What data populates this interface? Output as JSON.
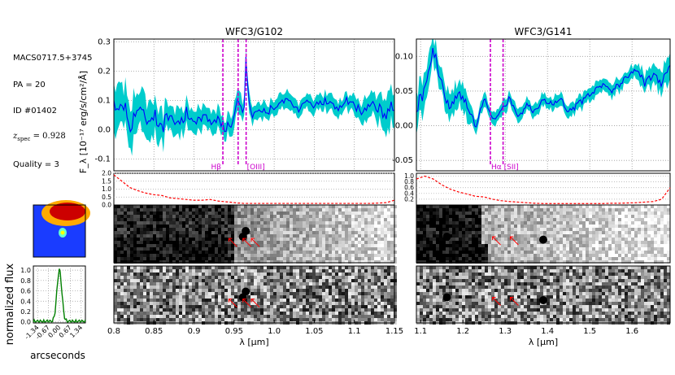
{
  "info": {
    "field": "MACS0717.5+3745",
    "pa": "PA = 20",
    "id": "ID #01402",
    "z_prefix": "z",
    "z_sub": "spec",
    "z_value": " = 0.928",
    "quality": "Quality = 3"
  },
  "colors": {
    "flux": "#0000ff",
    "error_band": "#00cccc",
    "line_marker": "#cc00cc",
    "contam": "#ff0000",
    "profile": "#008000"
  },
  "profile": {
    "ylabel": "normalized flux",
    "xlabel": "arcseconds",
    "yticks": [
      "0.0",
      "0.2",
      "0.4",
      "0.6",
      "0.8",
      "1.0"
    ],
    "xticks": [
      "-1.34",
      "-0.67",
      "0.00",
      "0.67",
      "1.34"
    ]
  },
  "chart_data": [
    {
      "type": "line",
      "title": "WFC3/G102",
      "ylabel": "F_λ [10⁻¹⁷ erg/s/cm²/Å]",
      "xlabel": "λ [μm]",
      "xlim": [
        0.8,
        1.15
      ],
      "ylim": [
        -0.14,
        0.31
      ],
      "xticks": [
        "0.8",
        "0.85",
        "0.9",
        "0.95",
        "1.0",
        "1.05",
        "1.1",
        "1.15"
      ],
      "yticks": [
        "-0.1",
        "0.0",
        "0.1",
        "0.2",
        "0.3"
      ],
      "grid": true,
      "lines": [
        {
          "label": "Hβ",
          "x": 0.936
        },
        {
          "label": "",
          "x": 0.955
        },
        {
          "label": "[OIII]",
          "x": 0.965
        }
      ],
      "series": [
        {
          "x": [
            0.8,
            0.81,
            0.82,
            0.83,
            0.84,
            0.85,
            0.86,
            0.87,
            0.88,
            0.89,
            0.9,
            0.91,
            0.92,
            0.93,
            0.94,
            0.945,
            0.95,
            0.955,
            0.958,
            0.962,
            0.965,
            0.968,
            0.972,
            0.98,
            0.99,
            1.0,
            1.01,
            1.02,
            1.03,
            1.04,
            1.05,
            1.06,
            1.07,
            1.08,
            1.09,
            1.1,
            1.11,
            1.12,
            1.13,
            1.14,
            1.15
          ],
          "y": [
            0.07,
            0.1,
            0.02,
            0.08,
            0.03,
            0.06,
            0.0,
            0.07,
            0.02,
            0.06,
            0.01,
            0.05,
            0.03,
            0.04,
            0.0,
            0.02,
            0.04,
            0.13,
            0.07,
            0.04,
            0.27,
            0.09,
            0.05,
            0.07,
            0.06,
            0.08,
            0.1,
            0.09,
            0.07,
            0.11,
            0.08,
            0.1,
            0.09,
            0.07,
            0.1,
            0.08,
            0.06,
            0.09,
            0.07,
            0.05,
            0.08
          ]
        }
      ],
      "error_halfwidth": [
        0.09,
        0.08,
        0.08,
        0.07,
        0.07,
        0.06,
        0.06,
        0.05,
        0.05,
        0.05,
        0.04,
        0.04,
        0.04,
        0.04,
        0.04,
        0.04,
        0.04,
        0.04,
        0.04,
        0.04,
        0.04,
        0.04,
        0.03,
        0.03,
        0.03,
        0.03,
        0.03,
        0.03,
        0.03,
        0.03,
        0.03,
        0.03,
        0.03,
        0.03,
        0.03,
        0.03,
        0.04,
        0.04,
        0.05,
        0.06,
        0.08
      ],
      "contam": {
        "ylim": [
          0.0,
          2.0
        ],
        "yticks": [
          "0.0",
          "0.5",
          "1.0",
          "1.5",
          "2.0"
        ],
        "y": [
          1.9,
          1.5,
          1.1,
          0.9,
          0.75,
          0.65,
          0.6,
          0.45,
          0.4,
          0.35,
          0.3,
          0.3,
          0.35,
          0.25,
          0.2,
          0.18,
          0.15,
          0.12,
          0.12,
          0.1,
          0.1,
          0.1,
          0.1,
          0.1,
          0.1,
          0.1,
          0.1,
          0.1,
          0.1,
          0.1,
          0.1,
          0.1,
          0.1,
          0.1,
          0.1,
          0.1,
          0.1,
          0.1,
          0.12,
          0.15,
          0.3
        ]
      }
    },
    {
      "type": "line",
      "title": "WFC3/G141",
      "xlabel": "λ [μm]",
      "xlim": [
        1.09,
        1.69
      ],
      "ylim": [
        -0.065,
        0.125
      ],
      "xticks": [
        "1.1",
        "1.2",
        "1.3",
        "1.4",
        "1.5",
        "1.6"
      ],
      "yticks": [
        "-0.05",
        "0.00",
        "0.05",
        "0.10"
      ],
      "grid": true,
      "lines": [
        {
          "label": "Hα",
          "x": 1.265
        },
        {
          "label": "[SII]",
          "x": 1.295
        }
      ],
      "series": [
        {
          "x": [
            1.09,
            1.11,
            1.13,
            1.15,
            1.17,
            1.19,
            1.21,
            1.23,
            1.25,
            1.27,
            1.29,
            1.31,
            1.33,
            1.35,
            1.37,
            1.39,
            1.41,
            1.43,
            1.45,
            1.47,
            1.49,
            1.51,
            1.53,
            1.55,
            1.57,
            1.59,
            1.61,
            1.63,
            1.65,
            1.67,
            1.69
          ],
          "y": [
            0.03,
            0.05,
            0.11,
            0.06,
            0.02,
            0.05,
            0.03,
            0.0,
            0.04,
            0.01,
            0.02,
            0.04,
            0.01,
            0.03,
            0.02,
            0.04,
            0.03,
            0.04,
            0.02,
            0.03,
            0.04,
            0.05,
            0.06,
            0.05,
            0.06,
            0.07,
            0.08,
            0.06,
            0.07,
            0.06,
            0.08
          ]
        }
      ],
      "error_halfwidth": [
        0.03,
        0.03,
        0.02,
        0.02,
        0.02,
        0.02,
        0.02,
        0.01,
        0.01,
        0.01,
        0.01,
        0.01,
        0.01,
        0.01,
        0.01,
        0.01,
        0.01,
        0.01,
        0.01,
        0.01,
        0.01,
        0.01,
        0.01,
        0.01,
        0.01,
        0.01,
        0.01,
        0.015,
        0.015,
        0.02,
        0.02
      ],
      "contam": {
        "ylim": [
          0.0,
          1.1
        ],
        "yticks": [
          "0.2",
          "0.4",
          "0.6",
          "0.8",
          "1.0"
        ],
        "y": [
          0.9,
          1.0,
          0.9,
          0.7,
          0.55,
          0.45,
          0.38,
          0.3,
          0.28,
          0.2,
          0.15,
          0.12,
          0.1,
          0.08,
          0.06,
          0.05,
          0.05,
          0.05,
          0.05,
          0.05,
          0.05,
          0.05,
          0.05,
          0.06,
          0.06,
          0.07,
          0.08,
          0.1,
          0.12,
          0.2,
          0.6
        ]
      }
    }
  ]
}
